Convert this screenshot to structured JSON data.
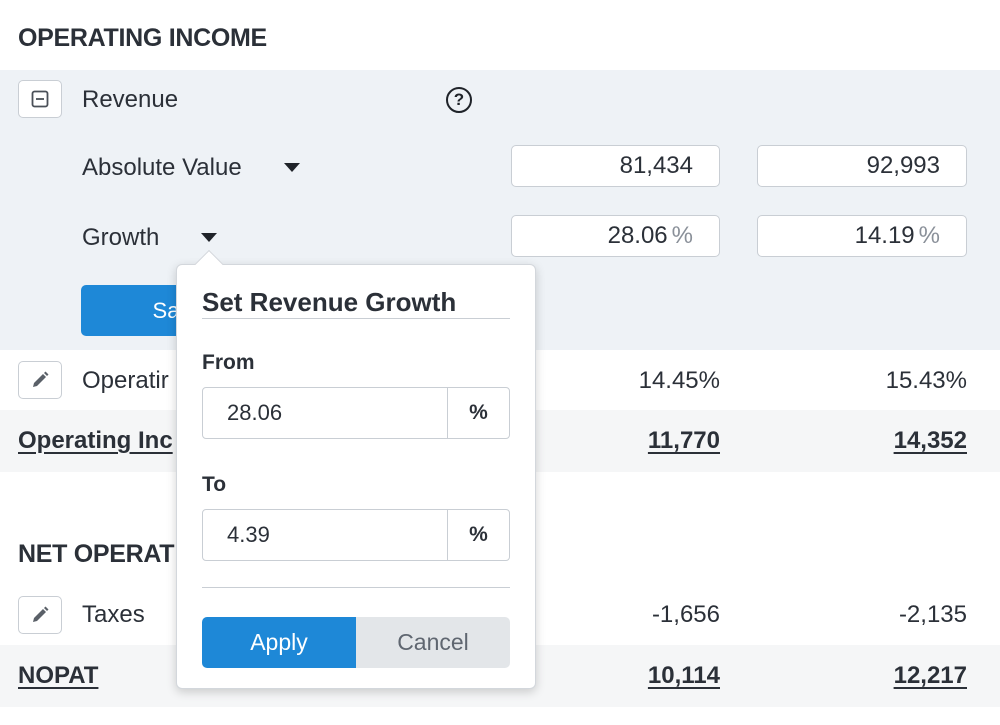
{
  "operating_income": {
    "section_title": "OPERATING INCOME",
    "revenue": {
      "label": "Revenue",
      "help_icon": "?",
      "absolute_value": {
        "label": "Absolute Value",
        "values": [
          "81,434",
          "92,993"
        ]
      },
      "growth": {
        "label": "Growth",
        "values": [
          "28.06",
          "14.19"
        ],
        "unit": "%"
      },
      "save_label": "Sa"
    },
    "operating_margin": {
      "label": "Operatir",
      "values": [
        "14.45%",
        "15.43%"
      ]
    },
    "total": {
      "label": "Operating Inc",
      "values": [
        "11,770",
        "14,352"
      ]
    }
  },
  "net_operating": {
    "section_title": "NET OPERAT",
    "taxes": {
      "label": "Taxes",
      "values": [
        "-1,656",
        "-2,135"
      ]
    },
    "total": {
      "label": "NOPAT",
      "values": [
        "10,114",
        "12,217"
      ]
    }
  },
  "popover": {
    "title": "Set Revenue Growth",
    "from": {
      "label": "From",
      "value": "28.06",
      "suffix": "%"
    },
    "to": {
      "label": "To",
      "value": "4.39",
      "suffix": "%"
    },
    "apply_label": "Apply",
    "cancel_label": "Cancel"
  },
  "colors": {
    "accent": "#1e88d7",
    "band": "#eef2f6",
    "text": "#2b3038"
  }
}
